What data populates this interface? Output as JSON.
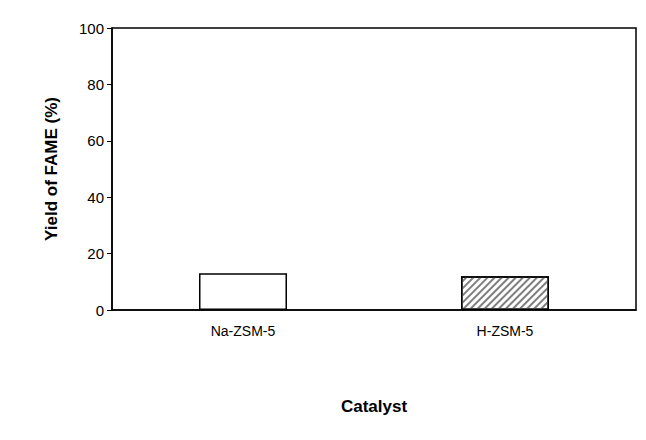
{
  "chart_data": {
    "type": "bar",
    "x_label": "Catalyst",
    "y_label": "Yield of FAME (%)",
    "categories": [
      "Na-ZSM-5",
      "H-ZSM-5"
    ],
    "values": [
      13,
      12
    ],
    "colors": [
      "#ffffff",
      "#7f7f7f"
    ],
    "ylim": [
      0,
      100
    ],
    "yticks": [
      0,
      20,
      40,
      60,
      80,
      100
    ],
    "grid": false
  }
}
